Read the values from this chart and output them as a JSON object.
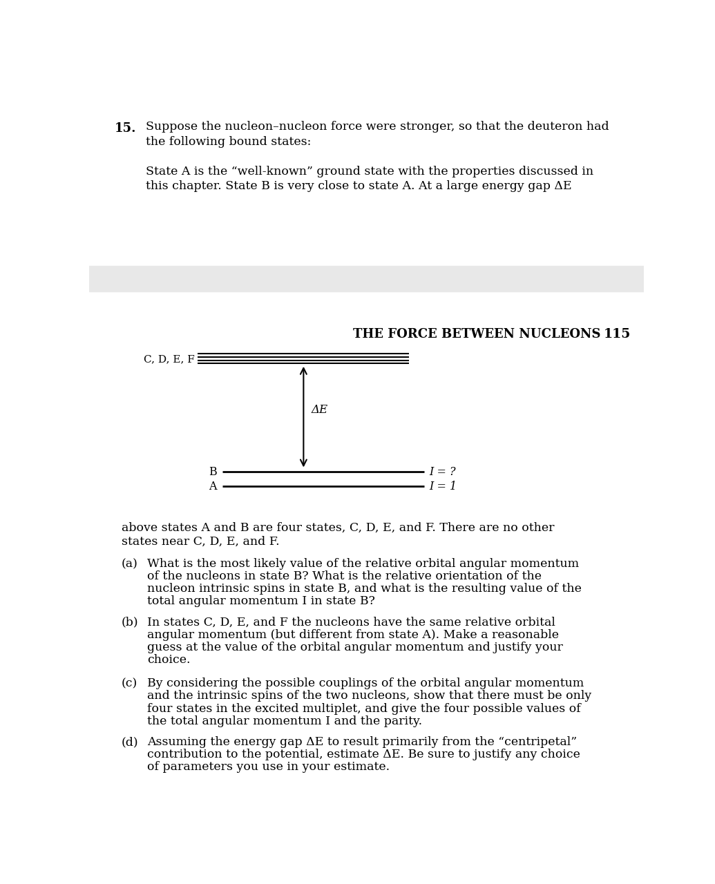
{
  "background_color": "#ffffff",
  "gray_band_color": "#e8e8e8",
  "text_color": "#000000",
  "header_text": "THE FORCE BETWEEN NUCLEONS",
  "header_page": "115",
  "problem_number": "15.",
  "problem_intro_line1": "Suppose the nucleon–nucleon force were stronger, so that the deuteron had",
  "problem_intro_line2": "the following bound states:",
  "problem_intro_line3": "State A is the “well-known” ground state with the properties discussed in",
  "problem_intro_line4": "this chapter. State B is very close to state A. At a large energy gap ΔE",
  "diagram_label_cdef": "C, D, E, F",
  "diagram_label_delta_e": "ΔE",
  "diagram_label_b": "B",
  "diagram_label_a": "A",
  "diagram_label_i_b": "I = ?",
  "diagram_label_i_a": "I = 1",
  "continuation_line1": "above states A and B are four states, C, D, E, and F. There are no other",
  "continuation_line2": "states near C, D, E, and F.",
  "part_a_label": "(a)",
  "part_a_lines": [
    "What is the most likely value of the relative orbital angular momentum",
    "of the nucleons in state B? What is the relative orientation of the",
    "nucleon intrinsic spins in state B, and what is the resulting value of the",
    "total angular momentum I in state B?"
  ],
  "part_b_label": "(b)",
  "part_b_lines": [
    "In states C, D, E, and F the nucleons have the same relative orbital",
    "angular momentum (but different from state A). Make a reasonable",
    "guess at the value of the orbital angular momentum and justify your",
    "choice."
  ],
  "part_c_label": "(c)",
  "part_c_lines": [
    "By considering the possible couplings of the orbital angular momentum",
    "and the intrinsic spins of the two nucleons, show that there must be only",
    "four states in the excited multiplet, and give the four possible values of",
    "the total angular momentum I and the parity."
  ],
  "part_d_label": "(d)",
  "part_d_lines": [
    "Assuming the energy gap ΔE to result primarily from the “centripetal”",
    "contribution to the potential, estimate ΔE. Be sure to justify any choice",
    "of parameters you use in your estimate."
  ]
}
